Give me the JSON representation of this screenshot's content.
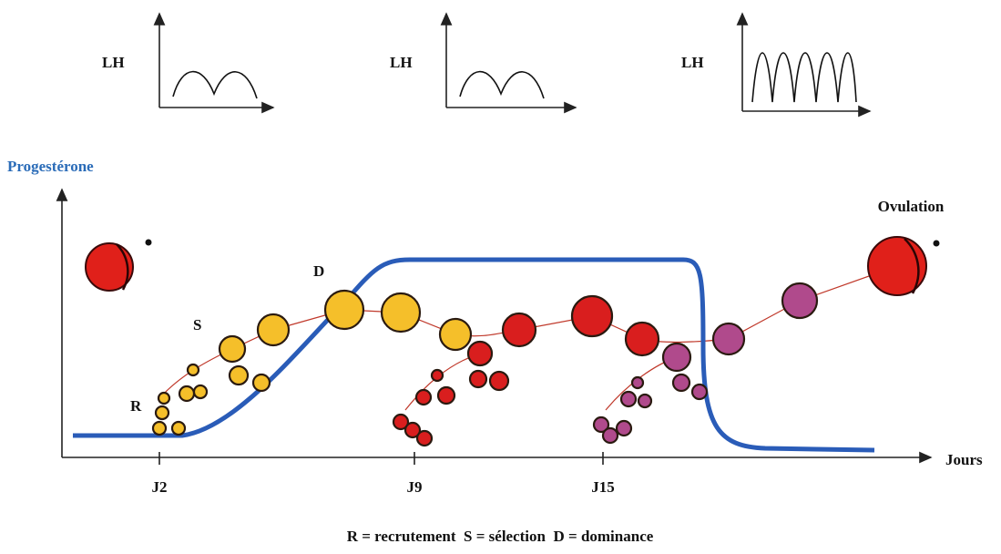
{
  "lh_panels": [
    {
      "label": "LH"
    },
    {
      "label": "LH"
    },
    {
      "label": "LH"
    }
  ],
  "main": {
    "y_label": "Progestérone",
    "x_label": "Jours",
    "day_labels": [
      "J2",
      "J9",
      "J15"
    ],
    "annotations": {
      "ovulation": "Ovulation",
      "dominance": "D",
      "selection": "S",
      "recruitment": "R"
    }
  },
  "legend": "R = recrutement  S = sélection  D = dominance"
}
